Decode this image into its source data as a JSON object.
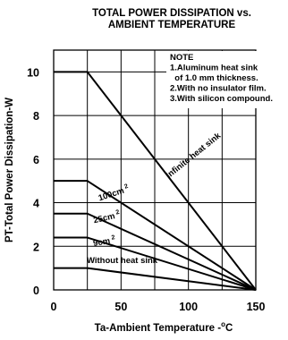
{
  "chart_data": {
    "type": "line",
    "title_lines": [
      "TOTAL POWER DISSIPATION vs.",
      "AMBIENT TEMPERATURE"
    ],
    "ylabel": "PT-Total Power Dissipation-W",
    "xlabel_parts": {
      "base": "Ta-Ambient Temperature -",
      "sup": "o",
      "tail": "C"
    },
    "xlim": [
      0,
      150
    ],
    "ylim": [
      0,
      11
    ],
    "x_ticks": [
      0,
      50,
      100,
      150
    ],
    "x_tick_labels": [
      "0",
      "50",
      "100",
      "150"
    ],
    "y_ticks": [
      0,
      2,
      4,
      6,
      8,
      10
    ],
    "y_tick_labels": [
      "0",
      "2",
      "4",
      "6",
      "8",
      "10"
    ],
    "x_grid": [
      25,
      50,
      75,
      100,
      125,
      150
    ],
    "y_grid": [
      2,
      4,
      6,
      8,
      10
    ],
    "grid": true,
    "note_lines": [
      "NOTE",
      "1.Aluminum heat sink",
      "  of 1.0 mm thickness.",
      "2.With no insulator film.",
      "3.With silicon compound."
    ],
    "series": [
      {
        "id": "infinite",
        "label_parts": [
          "Infinite heat sink"
        ],
        "x": [
          0,
          25,
          150
        ],
        "y": [
          10,
          10,
          0
        ]
      },
      {
        "id": "100cm2",
        "label_parts": [
          "100cm",
          "2"
        ],
        "x": [
          0,
          25,
          150
        ],
        "y": [
          5,
          5,
          0
        ]
      },
      {
        "id": "25cm2",
        "label_parts": [
          "25cm",
          "2"
        ],
        "x": [
          0,
          25,
          150
        ],
        "y": [
          3.5,
          3.5,
          0
        ]
      },
      {
        "id": "9cm2",
        "label_parts": [
          "9cm",
          "2"
        ],
        "x": [
          0,
          25,
          150
        ],
        "y": [
          2.4,
          2.4,
          0
        ]
      },
      {
        "id": "without",
        "label_parts": [
          "Without   heat sink"
        ],
        "x": [
          0,
          25,
          150
        ],
        "y": [
          1,
          1,
          0
        ]
      }
    ]
  }
}
